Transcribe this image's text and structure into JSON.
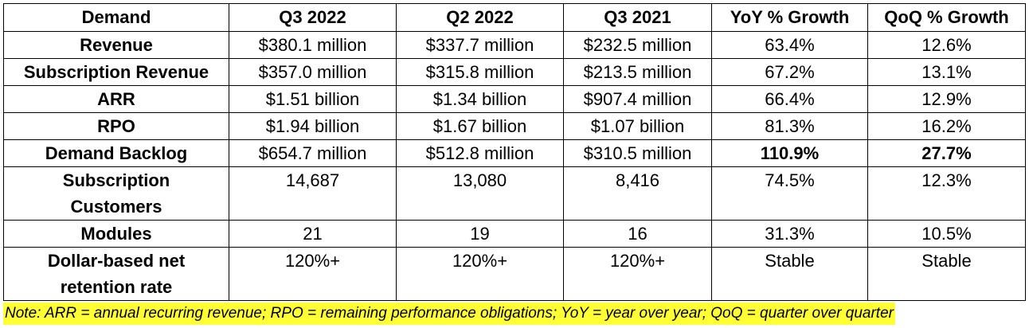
{
  "header": [
    "Demand",
    "Q3 2022",
    "Q2 2022",
    "Q3 2021",
    "YoY % Growth",
    "QoQ % Growth"
  ],
  "rows": [
    {
      "label": "Revenue",
      "values": [
        "$380.1 million",
        "$337.7 million",
        "$232.5 million",
        "63.4%",
        "12.6%"
      ]
    },
    {
      "label": "Subscription Revenue",
      "values": [
        "$357.0 million",
        "$315.8 million",
        "$213.5 million",
        "67.2%",
        "13.1%"
      ]
    },
    {
      "label": "ARR",
      "values": [
        "$1.51 billion",
        "$1.34 billion",
        "$907.4 million",
        "66.4%",
        "12.9%"
      ]
    },
    {
      "label": "RPO",
      "values": [
        "$1.94 billion",
        "$1.67 billion",
        "$1.07 billion",
        "81.3%",
        "16.2%"
      ]
    },
    {
      "label": "Demand Backlog",
      "values": [
        "$654.7 million",
        "$512.8 million",
        "$310.5 million",
        "110.9%",
        "27.7%"
      ]
    },
    {
      "label": "Subscription Customers",
      "values": [
        "14,687",
        "13,080",
        "8,416",
        "74.5%",
        "12.3%"
      ]
    },
    {
      "label": "Modules",
      "values": [
        "21",
        "19",
        "16",
        "31.3%",
        "10.5%"
      ]
    },
    {
      "label": "Dollar-based net retention rate",
      "values": [
        "120%+",
        "120%+",
        "120%+",
        "Stable",
        "Stable"
      ]
    }
  ],
  "note": "Note: ARR = annual recurring revenue; RPO = remaining performance obligations; YoY = year over year; QoQ = quarter over quarter"
}
